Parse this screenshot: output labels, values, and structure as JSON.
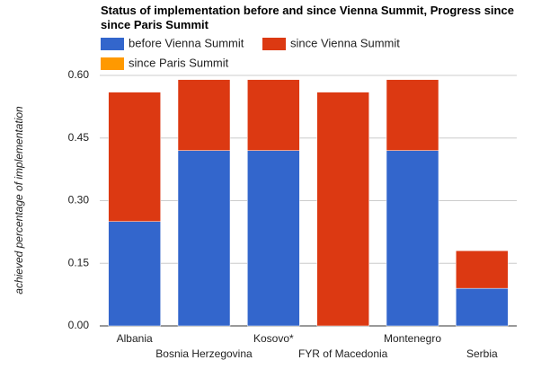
{
  "chart_data": {
    "type": "stacked-bar",
    "title": "Status of implementation before and since Vienna Summit, Progress since since Paris Summit",
    "y_label": "achieved percentage of implementation",
    "categories": [
      "Albania",
      "Bosnia Herzegovina",
      "Kosovo*",
      "FYR of Macedonia",
      "Montenegro",
      "Serbia"
    ],
    "series": [
      {
        "name": "before Vienna Summit",
        "color": "#3366cc",
        "values": [
          0.25,
          0.42,
          0.42,
          0,
          0.42,
          0.09
        ]
      },
      {
        "name": "since Vienna Summit",
        "color": "#dc3912",
        "values": [
          0.31,
          0.17,
          0.17,
          0.56,
          0.17,
          0.09
        ]
      },
      {
        "name": "since Paris Summit",
        "color": "#ff9900",
        "values": [
          0,
          0,
          0,
          0,
          0,
          0
        ]
      }
    ],
    "ylim": [
      0,
      0.6
    ],
    "yticks": [
      {
        "value": 0,
        "label": "0.00"
      },
      {
        "value": 0.15,
        "label": "0.15"
      },
      {
        "value": 0.3,
        "label": "0.30"
      },
      {
        "value": 0.45,
        "label": "0.45"
      },
      {
        "value": 0.6,
        "label": "0.60"
      }
    ],
    "grid": true
  }
}
